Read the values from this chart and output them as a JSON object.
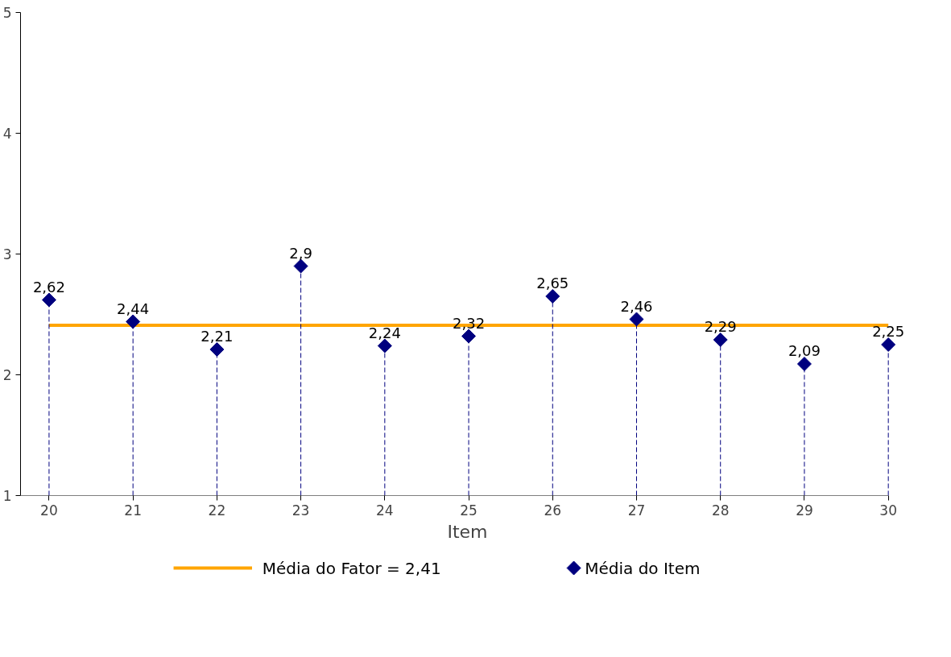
{
  "chart_data": {
    "type": "lollipop",
    "xlabel": "Item",
    "x": [
      20,
      21,
      22,
      23,
      24,
      25,
      26,
      27,
      28,
      29,
      30
    ],
    "series": [
      {
        "name": "Média do Item",
        "color": "#00007f",
        "values": [
          2.62,
          2.44,
          2.21,
          2.9,
          2.24,
          2.32,
          2.65,
          2.46,
          2.29,
          2.09,
          2.25
        ],
        "value_labels": [
          "2,62",
          "2,44",
          "2,21",
          "2,9",
          "2,24",
          "2,32",
          "2,65",
          "2,46",
          "2,29",
          "2,09",
          "2,25"
        ]
      }
    ],
    "ref_lines": [
      {
        "axis": "y",
        "value": 2.41,
        "label": "Média do Fator = 2,41",
        "color": "#ffa500",
        "line_style": "solid"
      }
    ],
    "xlim": [
      19.66,
      30
    ],
    "xticks": [
      20,
      21,
      22,
      23,
      24,
      25,
      26,
      27,
      28,
      29,
      30
    ],
    "ylim": [
      1,
      5
    ],
    "yticks": [
      1,
      2,
      3,
      4,
      5
    ],
    "grid": false,
    "legend": "bottom",
    "marker": "diamond",
    "line_style": "dashed"
  }
}
